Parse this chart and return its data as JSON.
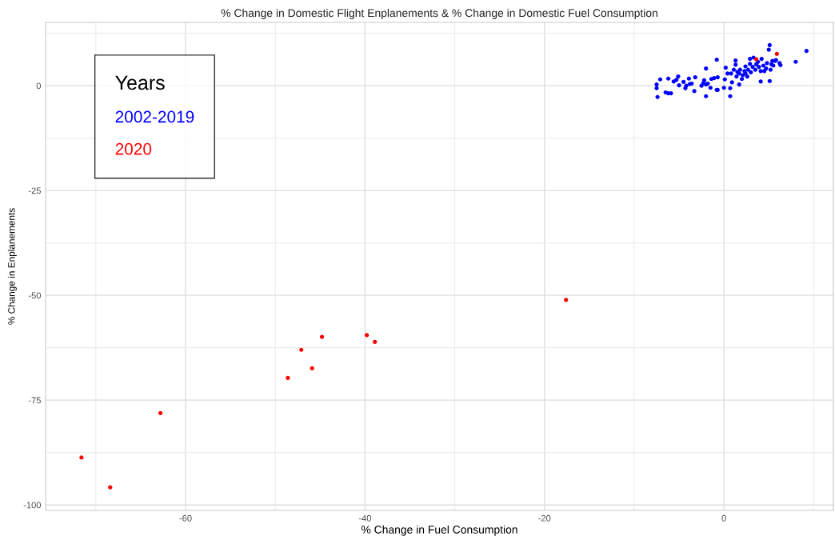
{
  "chart_data": {
    "type": "scatter",
    "title": "% Change in Domestic Flight Enplanements & % Change in Domestic Fuel Consumption",
    "xlabel": "% Change in Fuel Consumption",
    "ylabel": "% Change in Enplanements",
    "legend_title": "Years",
    "legend": "top left",
    "grid": true,
    "marker": "circle",
    "xlim": [
      -75.6,
      12.2
    ],
    "ylim": [
      -101.3,
      15.1
    ],
    "xticks": [
      -60,
      -40,
      -20,
      0
    ],
    "yticks": [
      -100,
      -75,
      -50,
      -25,
      0
    ],
    "series": [
      {
        "name": "2002-2019",
        "color": "#0000ff",
        "x": [
          -7.5,
          -7.5,
          -7.4,
          -7.1,
          -6.5,
          -6.2,
          -5.9,
          -6.2,
          -5.6,
          -5.3,
          -5.1,
          -5.0,
          -4.5,
          -4.3,
          -4.2,
          -3.9,
          -3.8,
          -3.6,
          -3.3,
          -3.2,
          -2.5,
          -2.3,
          -2.2,
          -2.0,
          -2.0,
          -2.0,
          -1.8,
          -1.5,
          -1.4,
          -1.1,
          -0.8,
          -0.7,
          -0.7,
          -0.8,
          0.0,
          0.1,
          0.2,
          0.4,
          0.7,
          0.7,
          0.8,
          0.9,
          1.1,
          1.3,
          1.3,
          1.4,
          1.5,
          1.7,
          1.7,
          1.8,
          2.0,
          2.1,
          2.3,
          2.4,
          2.4,
          2.6,
          2.7,
          2.9,
          2.9,
          3.0,
          3.2,
          3.3,
          3.5,
          3.6,
          3.8,
          3.9,
          4.1,
          4.1,
          4.2,
          4.4,
          4.5,
          4.7,
          4.8,
          5.0,
          5.1,
          5.1,
          5.2,
          5.3,
          5.4,
          5.5,
          5.7,
          5.8,
          6.2,
          6.3,
          8.0,
          9.2
        ],
        "values": [
          0.3,
          -0.6,
          -2.7,
          1.5,
          -1.6,
          -1.8,
          -1.8,
          1.7,
          1.0,
          1.4,
          2.2,
          0.1,
          0.9,
          -0.6,
          0.0,
          1.7,
          0.4,
          0.5,
          -1.3,
          2.0,
          0.0,
          0.6,
          1.3,
          0.3,
          4.1,
          -2.5,
          0.5,
          -0.5,
          1.6,
          1.8,
          -1.0,
          -1.0,
          2.0,
          6.2,
          -0.5,
          1.5,
          4.3,
          2.9,
          -0.6,
          -2.5,
          2.9,
          0.8,
          3.8,
          6.0,
          5.0,
          2.2,
          3.3,
          2.9,
          0.3,
          3.8,
          1.6,
          2.5,
          3.5,
          4.6,
          2.9,
          2.2,
          3.8,
          5.2,
          6.4,
          3.2,
          4.5,
          6.7,
          3.8,
          5.1,
          5.7,
          4.5,
          1.0,
          3.5,
          6.4,
          4.8,
          3.5,
          4.1,
          5.4,
          8.6,
          9.7,
          1.1,
          3.8,
          5.1,
          5.9,
          4.8,
          5.9,
          6.1,
          5.4,
          4.9,
          5.7,
          8.3
        ]
      },
      {
        "name": "2020",
        "color": "#ff0000",
        "x": [
          3.6,
          5.9,
          -71.6,
          -68.4,
          -62.8,
          -48.6,
          -47.1,
          -45.9,
          -44.8,
          -39.8,
          -38.9,
          -17.6
        ],
        "values": [
          6.3,
          7.6,
          -88.7,
          -95.8,
          -78.1,
          -69.7,
          -63.0,
          -67.4,
          -59.9,
          -59.5,
          -61.1,
          -51.1
        ]
      }
    ]
  }
}
